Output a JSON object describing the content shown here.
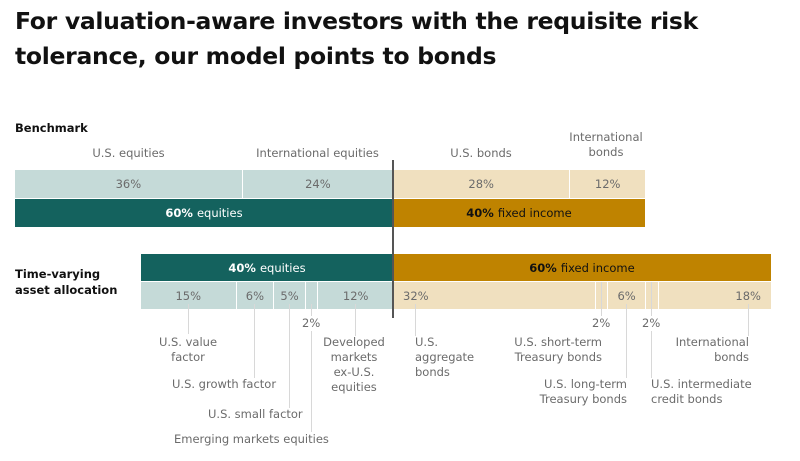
{
  "title": "For valuation-aware investors with the requisite risk tolerance, our model points to bonds",
  "colors": {
    "equity_light": "#c5dad8",
    "equity_dark": "#14625e",
    "bond_light": "#f0e0bf",
    "bond_dark": "#bf8300"
  },
  "chart_data": {
    "type": "bar",
    "orientation": "horizontal-stacked",
    "benchmark": {
      "label": "Benchmark",
      "segments": [
        {
          "name": "U.S. equities",
          "value": 36,
          "label": "36%",
          "group": "equity"
        },
        {
          "name": "International equities",
          "value": 24,
          "label": "24%",
          "group": "equity"
        },
        {
          "name": "U.S. bonds",
          "value": 28,
          "label": "28%",
          "group": "bond"
        },
        {
          "name": "International bonds",
          "value": 12,
          "label": "12%",
          "group": "bond"
        }
      ],
      "totals": [
        {
          "value": 60,
          "pct": "60%",
          "text": "equities",
          "group": "equity"
        },
        {
          "value": 40,
          "pct": "40%",
          "text": "fixed income",
          "group": "bond"
        }
      ]
    },
    "time_varying": {
      "label": "Time-varying asset allocation",
      "totals": [
        {
          "value": 40,
          "pct": "40%",
          "text": "equities",
          "group": "equity"
        },
        {
          "value": 60,
          "pct": "60%",
          "text": "fixed income",
          "group": "bond"
        }
      ],
      "segments": [
        {
          "name": "U.S. value factor",
          "value": 15,
          "label": "15%",
          "group": "equity"
        },
        {
          "name": "U.S. growth factor",
          "value": 6,
          "label": "6%",
          "group": "equity"
        },
        {
          "name": "U.S. small factor",
          "value": 5,
          "label": "5%",
          "group": "equity"
        },
        {
          "name": "Emerging markets equities",
          "value": 2,
          "label": "2%",
          "group": "equity"
        },
        {
          "name": "Developed markets ex-U.S. equities",
          "value": 12,
          "label": "12%",
          "group": "equity"
        },
        {
          "name": "U.S. aggregate bonds",
          "value": 32,
          "label": "32%",
          "group": "bond"
        },
        {
          "name": "U.S. short-term Treasury bonds",
          "value": 2,
          "label": "2%",
          "group": "bond"
        },
        {
          "name": "U.S. long-term Treasury bonds",
          "value": 6,
          "label": "6%",
          "group": "bond"
        },
        {
          "name": "U.S. intermediate credit bonds",
          "value": 2,
          "label": "2%",
          "group": "bond"
        },
        {
          "name": "International bonds",
          "value": 18,
          "label": "18%",
          "group": "bond"
        }
      ]
    }
  },
  "labels": {
    "us_value": [
      "U.S. value",
      "factor"
    ],
    "us_growth": "U.S. growth factor",
    "us_small": "U.S. small factor",
    "em": "Emerging markets equities",
    "developed": [
      "Developed",
      "markets",
      "ex-U.S.",
      "equities"
    ],
    "us_agg": [
      "U.S.",
      "aggregate",
      "bonds"
    ],
    "short_term": [
      "U.S. short-term",
      "Treasury bonds"
    ],
    "long_term": [
      "U.S. long-term",
      "Treasury bonds"
    ],
    "intermediate": [
      "U.S. intermediate",
      "credit bonds"
    ],
    "intl_bonds": [
      "International",
      "bonds"
    ],
    "time_varying_label": [
      "Time-varying",
      "asset allocation"
    ]
  }
}
